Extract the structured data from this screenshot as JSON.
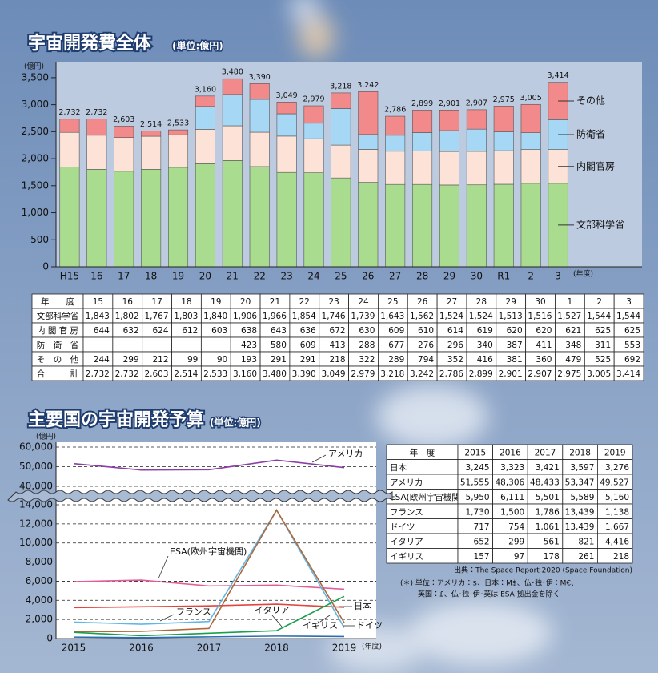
{
  "chart_data": [
    {
      "type": "bar",
      "stacked": true,
      "title": "宇宙開発費全体",
      "subtitle": "(単位:億円)",
      "y_label": "(億円)",
      "x_label": "(年度)",
      "categories": [
        "H15",
        "16",
        "17",
        "18",
        "19",
        "20",
        "21",
        "22",
        "23",
        "24",
        "25",
        "26",
        "27",
        "28",
        "29",
        "30",
        "R1",
        "2",
        "3"
      ],
      "series": [
        {
          "name": "文部科学省",
          "color": "#a9dc8e",
          "values": [
            1843,
            1802,
            1767,
            1803,
            1840,
            1906,
            1966,
            1854,
            1746,
            1739,
            1643,
            1562,
            1524,
            1524,
            1513,
            1516,
            1527,
            1544,
            1544
          ]
        },
        {
          "name": "内閣官房",
          "color": "#fde2d8",
          "values": [
            644,
            632,
            624,
            612,
            603,
            638,
            643,
            636,
            672,
            630,
            609,
            610,
            614,
            619,
            620,
            620,
            621,
            625,
            625
          ]
        },
        {
          "name": "防衛省",
          "color": "#a6d8f6",
          "values": [
            null,
            null,
            null,
            null,
            null,
            423,
            580,
            609,
            413,
            288,
            677,
            276,
            296,
            340,
            387,
            411,
            348,
            311,
            553
          ]
        },
        {
          "name": "その他",
          "color": "#f2898a",
          "values": [
            244,
            299,
            212,
            99,
            90,
            193,
            291,
            291,
            218,
            322,
            289,
            794,
            352,
            416,
            381,
            360,
            479,
            525,
            692
          ]
        }
      ],
      "totals": {
        "values": [
          2732,
          2732,
          2603,
          2514,
          2533,
          3160,
          3480,
          3390,
          3049,
          2979,
          3218,
          3242,
          2786,
          2899,
          2901,
          2907,
          2975,
          3005,
          3414
        ],
        "value_labels": [
          "2,732",
          "2,732",
          "2,603",
          "2,514",
          "2,533",
          "3,160",
          "3,480",
          "3,390",
          "3,049",
          "2,979",
          "3,218",
          "3,242",
          "2,786",
          "2,899",
          "2,901",
          "2,907",
          "2,975",
          "3,005",
          "3,414"
        ]
      },
      "ylim": [
        0,
        3780
      ],
      "yticks": [
        0,
        500,
        {
          "value": 1000,
          "label": "1,000"
        },
        {
          "value": 1500,
          "label": "1,500"
        },
        {
          "value": 2000,
          "label": "2,000"
        },
        {
          "value": 2500,
          "label": "2,500"
        },
        {
          "value": 3000,
          "label": "3,000"
        },
        {
          "value": 3500,
          "label": "3,500"
        }
      ],
      "legend": "right"
    },
    {
      "type": "line",
      "title": "主要国の宇宙開発予算",
      "subtitle": "(単位:億円)",
      "y_label": "(億円)",
      "x_label": "(年度)",
      "categories": [
        "2015",
        "2016",
        "2017",
        "2018",
        "2019"
      ],
      "series": [
        {
          "name": "日本",
          "color": "#e2453b",
          "values": [
            3245,
            3323,
            3421,
            3597,
            3276
          ]
        },
        {
          "name": "アメリカ",
          "color": "#8a3fa6",
          "values": [
            51555,
            48306,
            48433,
            53347,
            49527
          ]
        },
        {
          "name": "ESA(欧州宇宙機関)",
          "color": "#e35e98",
          "values": [
            5950,
            6111,
            5501,
            5589,
            5160
          ]
        },
        {
          "name": "フランス",
          "color": "#62b6e6",
          "values": [
            1730,
            1500,
            1786,
            13439,
            1138
          ]
        },
        {
          "name": "ドイツ",
          "color": "#b0693a",
          "values": [
            717,
            754,
            1061,
            13439,
            1667
          ]
        },
        {
          "name": "イタリア",
          "color": "#17a04c",
          "values": [
            652,
            299,
            561,
            821,
            4416
          ]
        },
        {
          "name": "イギリス",
          "color": "#2a6db0",
          "values": [
            157,
            97,
            178,
            261,
            218
          ]
        }
      ],
      "ylim": [
        0,
        14000
      ],
      "yticks": [
        0,
        {
          "value": 2000,
          "label": "2,000"
        },
        {
          "value": 4000,
          "label": "4,000"
        },
        {
          "value": 6000,
          "label": "6,000"
        },
        {
          "value": 8000,
          "label": "8,000"
        },
        {
          "value": 10000,
          "label": "10,000"
        },
        {
          "value": 12000,
          "label": "12,000"
        },
        {
          "value": 14000,
          "label": "14,000"
        }
      ],
      "y_break": {
        "ylim": [
          40000,
          60000
        ],
        "yticks": [
          {
            "value": 40000,
            "label": "40,000"
          },
          {
            "value": 50000,
            "label": "50,000"
          },
          {
            "value": 60000,
            "label": "60,000"
          }
        ]
      },
      "grid": "dashed"
    }
  ],
  "tables": [
    {
      "header": [
        "年　　度",
        "15",
        "16",
        "17",
        "18",
        "19",
        "20",
        "21",
        "22",
        "23",
        "24",
        "25",
        "26",
        "27",
        "28",
        "29",
        "30",
        "1",
        "2",
        "3"
      ],
      "rows": [
        [
          "文部科学省",
          "1,843",
          "1,802",
          "1,767",
          "1,803",
          "1,840",
          "1,906",
          "1,966",
          "1,854",
          "1,746",
          "1,739",
          "1,643",
          "1,562",
          "1,524",
          "1,524",
          "1,513",
          "1,516",
          "1,527",
          "1,544",
          "1,544"
        ],
        [
          "内 閣 官 房",
          "644",
          "632",
          "624",
          "612",
          "603",
          "638",
          "643",
          "636",
          "672",
          "630",
          "609",
          "610",
          "614",
          "619",
          "620",
          "620",
          "621",
          "625",
          "625"
        ],
        [
          "防　衛　省",
          null,
          null,
          null,
          null,
          null,
          "423",
          "580",
          "609",
          "413",
          "288",
          "677",
          "276",
          "296",
          "340",
          "387",
          "411",
          "348",
          "311",
          "553"
        ],
        [
          "そ　の　他",
          "244",
          "299",
          "212",
          "99",
          "90",
          "193",
          "291",
          "291",
          "218",
          "322",
          "289",
          "794",
          "352",
          "416",
          "381",
          "360",
          "479",
          "525",
          "692"
        ],
        [
          "合　　　計",
          "2,732",
          "2,732",
          "2,603",
          "2,514",
          "2,533",
          "3,160",
          "3,480",
          "3,390",
          "3,049",
          "2,979",
          "3,218",
          "3,242",
          "2,786",
          "2,899",
          "2,901",
          "2,907",
          "2,975",
          "3,005",
          "3,414"
        ]
      ]
    },
    {
      "header": [
        "年　度",
        "2015",
        "2016",
        "2017",
        "2018",
        "2019"
      ],
      "rows": [
        [
          "日本",
          "3,245",
          "3,323",
          "3,421",
          "3,597",
          "3,276"
        ],
        [
          "アメリカ",
          "51,555",
          "48,306",
          "48,433",
          "53,347",
          "49,527"
        ],
        [
          "ESA(欧州宇宙機関)",
          "5,950",
          "6,111",
          "5,501",
          "5,589",
          "5,160"
        ],
        [
          "フランス",
          "1,730",
          "1,500",
          "1,786",
          "13,439",
          "1,138"
        ],
        [
          "ドイツ",
          "717",
          "754",
          "1,061",
          "13,439",
          "1,667"
        ],
        [
          "イタリア",
          "652",
          "299",
          "561",
          "821",
          "4,416"
        ],
        [
          "イギリス",
          "157",
          "97",
          "178",
          "261",
          "218"
        ]
      ]
    }
  ],
  "notes": {
    "source": "出典：The Space Report 2020 (Space Foundation)",
    "units": [
      "(＊) 単位：アメリカ：$、日本：M$、仏･独･伊：M€、",
      "英国：£、仏･独･伊･英は ESA 拠出金を除く"
    ]
  }
}
